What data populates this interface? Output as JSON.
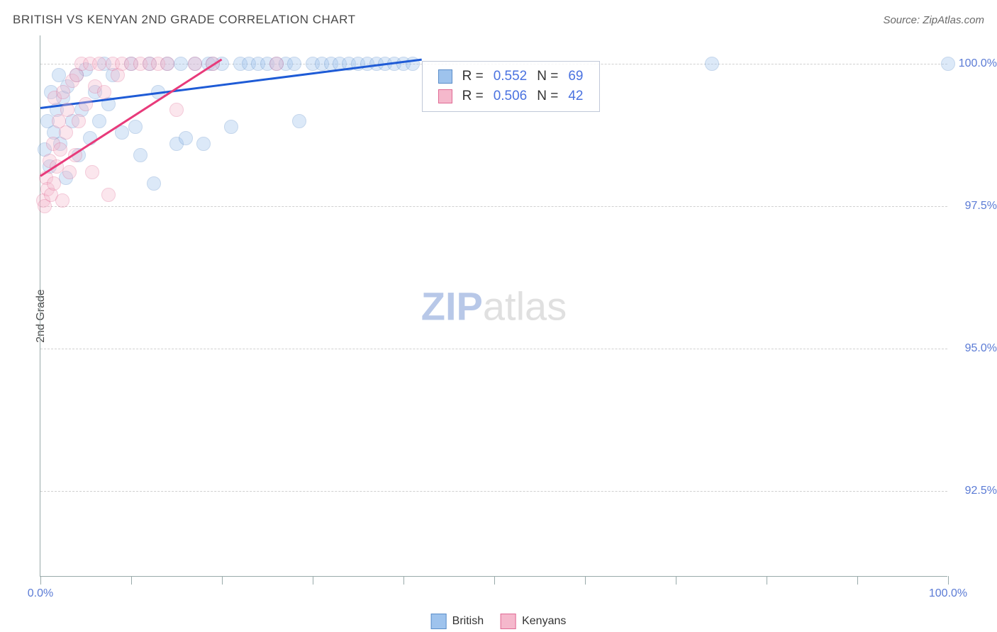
{
  "chart": {
    "title": "BRITISH VS KENYAN 2ND GRADE CORRELATION CHART",
    "source": "Source: ZipAtlas.com",
    "y_axis_title": "2nd Grade",
    "watermark_bold": "ZIP",
    "watermark_light": "atlas",
    "xlim": [
      0,
      100
    ],
    "ylim": [
      91,
      100.5
    ],
    "x_ticks": [
      0,
      10,
      20,
      30,
      40,
      50,
      60,
      70,
      80,
      90,
      100
    ],
    "x_tick_labels": {
      "0": "0.0%",
      "100": "100.0%"
    },
    "y_gridlines": [
      92.5,
      95.0,
      97.5,
      100.0
    ],
    "y_tick_labels": [
      "92.5%",
      "95.0%",
      "97.5%",
      "100.0%"
    ],
    "marker_radius": 10,
    "marker_opacity": 0.35,
    "series": {
      "british": {
        "label": "British",
        "fill": "#9ec3ed",
        "stroke": "#5a8dc9",
        "trend_color": "#1e5bd6",
        "r_value": "0.552",
        "n_value": "69",
        "trend": {
          "x1": 0,
          "y1": 99.25,
          "x2": 42,
          "y2": 100.1
        },
        "points": [
          [
            0.5,
            98.5
          ],
          [
            0.8,
            99.0
          ],
          [
            1.0,
            98.2
          ],
          [
            1.2,
            99.5
          ],
          [
            1.5,
            98.8
          ],
          [
            1.8,
            99.2
          ],
          [
            2.0,
            99.8
          ],
          [
            2.2,
            98.6
          ],
          [
            2.5,
            99.4
          ],
          [
            2.8,
            98.0
          ],
          [
            3.0,
            99.6
          ],
          [
            3.5,
            99.0
          ],
          [
            4.0,
            99.8
          ],
          [
            4.2,
            98.4
          ],
          [
            4.5,
            99.2
          ],
          [
            5.0,
            99.9
          ],
          [
            5.5,
            98.7
          ],
          [
            6.0,
            99.5
          ],
          [
            6.5,
            99.0
          ],
          [
            7.0,
            100.0
          ],
          [
            7.5,
            99.3
          ],
          [
            8.0,
            99.8
          ],
          [
            9.0,
            98.8
          ],
          [
            10.0,
            100.0
          ],
          [
            10.5,
            98.9
          ],
          [
            11.0,
            98.4
          ],
          [
            12.0,
            100.0
          ],
          [
            12.5,
            97.9
          ],
          [
            13.0,
            99.5
          ],
          [
            14.0,
            100.0
          ],
          [
            15.0,
            98.6
          ],
          [
            15.5,
            100.0
          ],
          [
            16.0,
            98.7
          ],
          [
            17.0,
            100.0
          ],
          [
            18.0,
            98.6
          ],
          [
            18.5,
            100.0
          ],
          [
            19.0,
            100.0
          ],
          [
            20.0,
            100.0
          ],
          [
            21.0,
            98.9
          ],
          [
            22.0,
            100.0
          ],
          [
            23.0,
            100.0
          ],
          [
            24.0,
            100.0
          ],
          [
            25.0,
            100.0
          ],
          [
            26.0,
            100.0
          ],
          [
            27.0,
            100.0
          ],
          [
            28.0,
            100.0
          ],
          [
            28.5,
            99.0
          ],
          [
            30.0,
            100.0
          ],
          [
            31.0,
            100.0
          ],
          [
            32.0,
            100.0
          ],
          [
            33.0,
            100.0
          ],
          [
            34.0,
            100.0
          ],
          [
            35.0,
            100.0
          ],
          [
            36.0,
            100.0
          ],
          [
            37.0,
            100.0
          ],
          [
            38.0,
            100.0
          ],
          [
            39.0,
            100.0
          ],
          [
            40.0,
            100.0
          ],
          [
            41.0,
            100.0
          ],
          [
            74.0,
            100.0
          ],
          [
            100.0,
            100.0
          ]
        ]
      },
      "kenyans": {
        "label": "Kenyans",
        "fill": "#f5b8cc",
        "stroke": "#e06a94",
        "trend_color": "#e83a7a",
        "r_value": "0.506",
        "n_value": "42",
        "trend": {
          "x1": 0,
          "y1": 98.05,
          "x2": 20,
          "y2": 100.1
        },
        "points": [
          [
            0.3,
            97.6
          ],
          [
            0.5,
            97.5
          ],
          [
            0.6,
            98.0
          ],
          [
            0.8,
            97.8
          ],
          [
            1.0,
            98.3
          ],
          [
            1.2,
            97.7
          ],
          [
            1.4,
            98.6
          ],
          [
            1.5,
            97.9
          ],
          [
            1.6,
            99.4
          ],
          [
            1.8,
            98.2
          ],
          [
            2.0,
            99.0
          ],
          [
            2.2,
            98.5
          ],
          [
            2.4,
            97.6
          ],
          [
            2.5,
            99.5
          ],
          [
            2.8,
            98.8
          ],
          [
            3.0,
            99.2
          ],
          [
            3.2,
            98.1
          ],
          [
            3.5,
            99.7
          ],
          [
            3.8,
            98.4
          ],
          [
            4.0,
            99.8
          ],
          [
            4.2,
            99.0
          ],
          [
            4.5,
            100.0
          ],
          [
            5.0,
            99.3
          ],
          [
            5.5,
            100.0
          ],
          [
            5.7,
            98.1
          ],
          [
            6.0,
            99.6
          ],
          [
            6.5,
            100.0
          ],
          [
            7.0,
            99.5
          ],
          [
            7.5,
            97.7
          ],
          [
            8.0,
            100.0
          ],
          [
            8.5,
            99.8
          ],
          [
            9.0,
            100.0
          ],
          [
            10.0,
            100.0
          ],
          [
            11.0,
            100.0
          ],
          [
            12.0,
            100.0
          ],
          [
            13.0,
            100.0
          ],
          [
            14.0,
            100.0
          ],
          [
            15.0,
            99.2
          ],
          [
            17.0,
            100.0
          ],
          [
            19.0,
            100.0
          ],
          [
            26.0,
            100.0
          ]
        ]
      }
    },
    "stat_box": {
      "r_label": "R =",
      "n_label": "N ="
    }
  }
}
